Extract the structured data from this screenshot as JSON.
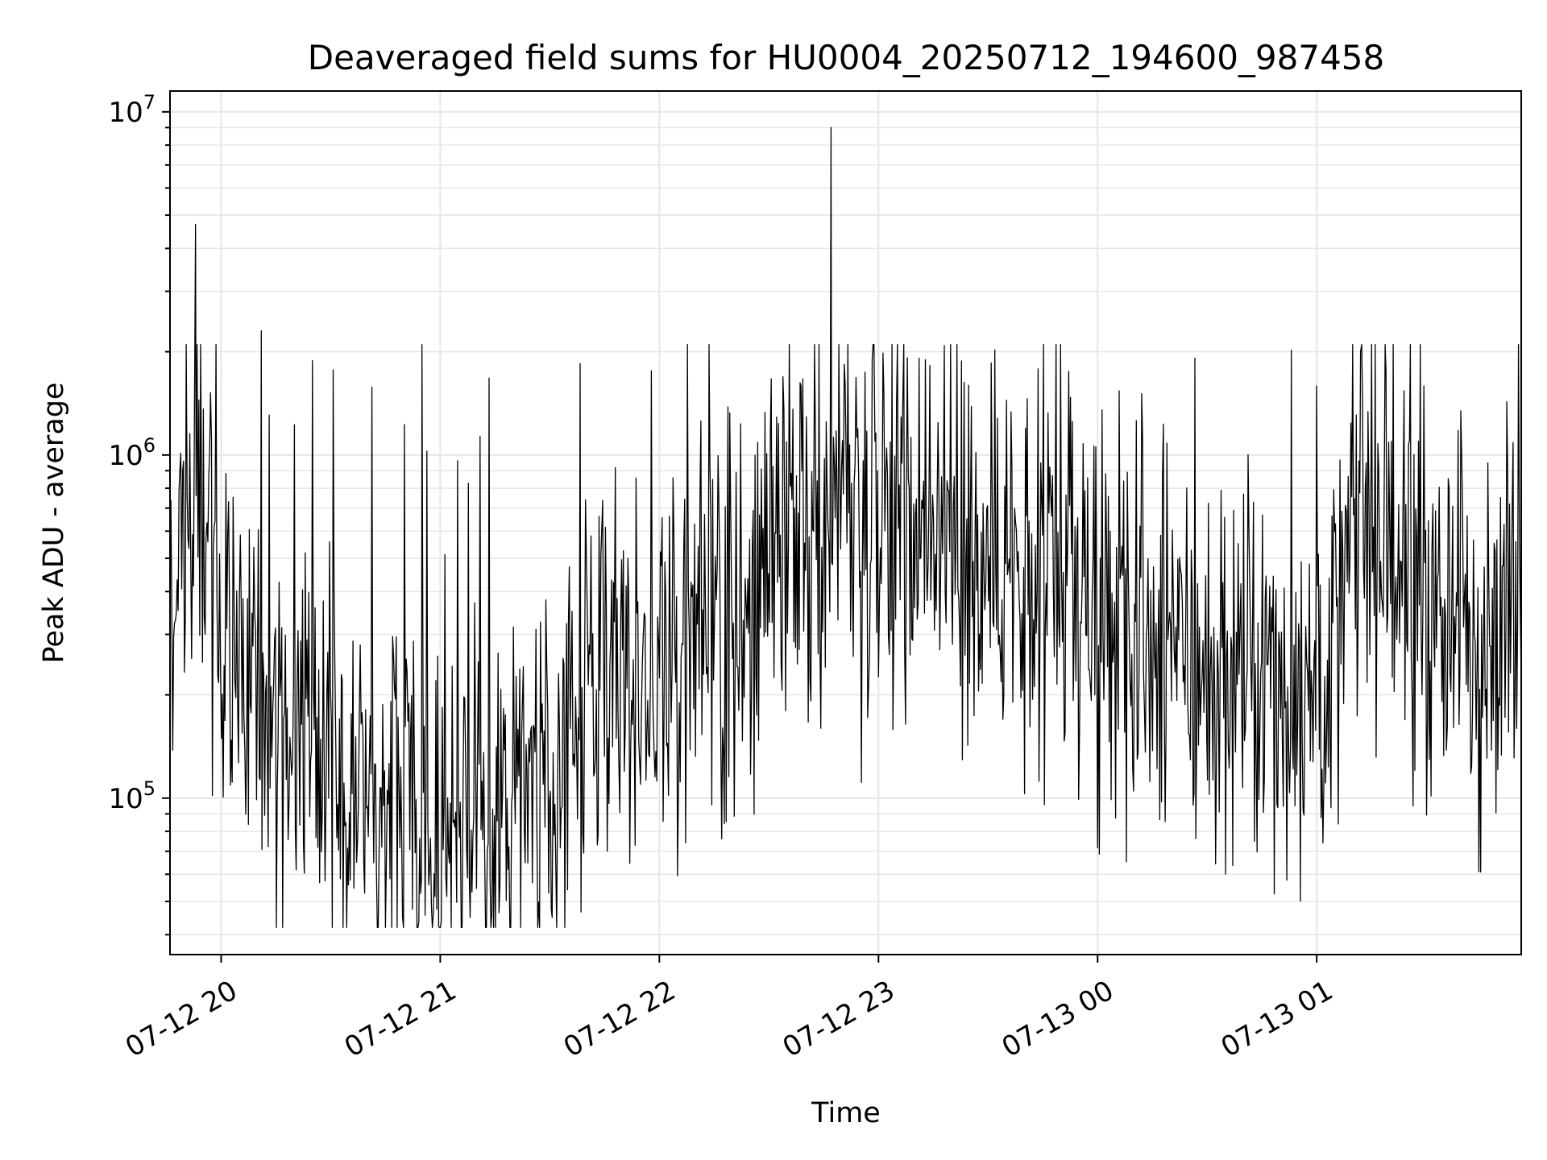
{
  "chart_data": {
    "type": "line",
    "title": "Deaveraged field sums for HU0004_20250712_194600_987458",
    "xlabel": "Time",
    "ylabel": "Peak ADU - average",
    "yscale": "log",
    "ylim": [
      35000,
      11500000
    ],
    "xlim": [
      "2025-07-12T19:46:00",
      "2025-07-13T01:56:00"
    ],
    "grid": true,
    "color": "#000000",
    "x_ticks": [
      {
        "label": "07-12 20",
        "time": "2025-07-12T20:00:00"
      },
      {
        "label": "07-12 21",
        "time": "2025-07-12T21:00:00"
      },
      {
        "label": "07-12 22",
        "time": "2025-07-12T22:00:00"
      },
      {
        "label": "07-12 23",
        "time": "2025-07-12T23:00:00"
      },
      {
        "label": "07-13 00",
        "time": "2025-07-13T00:00:00"
      },
      {
        "label": "07-13 01",
        "time": "2025-07-13T01:00:00"
      }
    ],
    "y_ticks": [
      {
        "base": "10",
        "exp": "5",
        "value": 100000
      },
      {
        "base": "10",
        "exp": "6",
        "value": 1000000
      },
      {
        "base": "10",
        "exp": "7",
        "value": 10000000
      }
    ],
    "series": [
      {
        "x": [
          "2025-07-12T19:46:00",
          "2025-07-12T19:52:00",
          "2025-07-12T19:55:00",
          "2025-07-12T20:00:00",
          "2025-07-12T20:05:00",
          "2025-07-12T20:10:00",
          "2025-07-12T20:20:00",
          "2025-07-12T20:30:00",
          "2025-07-12T20:40:00",
          "2025-07-12T20:50:00",
          "2025-07-12T21:00:00",
          "2025-07-12T21:10:00",
          "2025-07-12T21:20:00",
          "2025-07-12T21:30:00",
          "2025-07-12T21:40:00",
          "2025-07-12T21:50:00",
          "2025-07-12T22:00:00",
          "2025-07-12T22:10:00",
          "2025-07-12T22:20:00",
          "2025-07-12T22:30:00",
          "2025-07-12T22:40:00",
          "2025-07-12T22:50:00",
          "2025-07-12T23:00:00",
          "2025-07-12T23:10:00",
          "2025-07-12T23:20:00",
          "2025-07-12T23:30:00",
          "2025-07-12T23:40:00",
          "2025-07-12T23:50:00",
          "2025-07-13T00:00:00",
          "2025-07-13T00:10:00",
          "2025-07-13T00:20:00",
          "2025-07-13T00:30:00",
          "2025-07-13T00:40:00",
          "2025-07-13T00:50:00",
          "2025-07-13T01:00:00",
          "2025-07-13T01:05:00",
          "2025-07-13T01:10:00",
          "2025-07-13T01:15:00",
          "2025-07-13T01:20:00",
          "2025-07-13T01:30:00",
          "2025-07-13T01:40:00",
          "2025-07-13T01:50:00",
          "2025-07-13T01:56:00"
        ],
        "y": [
          450000,
          600000,
          500000,
          350000,
          200000,
          170000,
          140000,
          130000,
          120000,
          110000,
          80000,
          75000,
          90000,
          110000,
          200000,
          220000,
          230000,
          280000,
          330000,
          400000,
          600000,
          800000,
          800000,
          650000,
          550000,
          450000,
          380000,
          330000,
          300000,
          270000,
          250000,
          230000,
          220000,
          210000,
          240000,
          300000,
          550000,
          600000,
          500000,
          350000,
          300000,
          350000,
          400000
        ],
        "spikes": [
          {
            "time": "2025-07-12T19:53:00",
            "value": 4700000
          },
          {
            "time": "2025-07-12T20:11:00",
            "value": 2300000
          },
          {
            "time": "2025-07-12T20:55:00",
            "value": 2100000
          },
          {
            "time": "2025-07-12T22:47:00",
            "value": 9000000
          },
          {
            "time": "2025-07-13T01:12:00",
            "value": 2000000
          }
        ]
      }
    ]
  }
}
